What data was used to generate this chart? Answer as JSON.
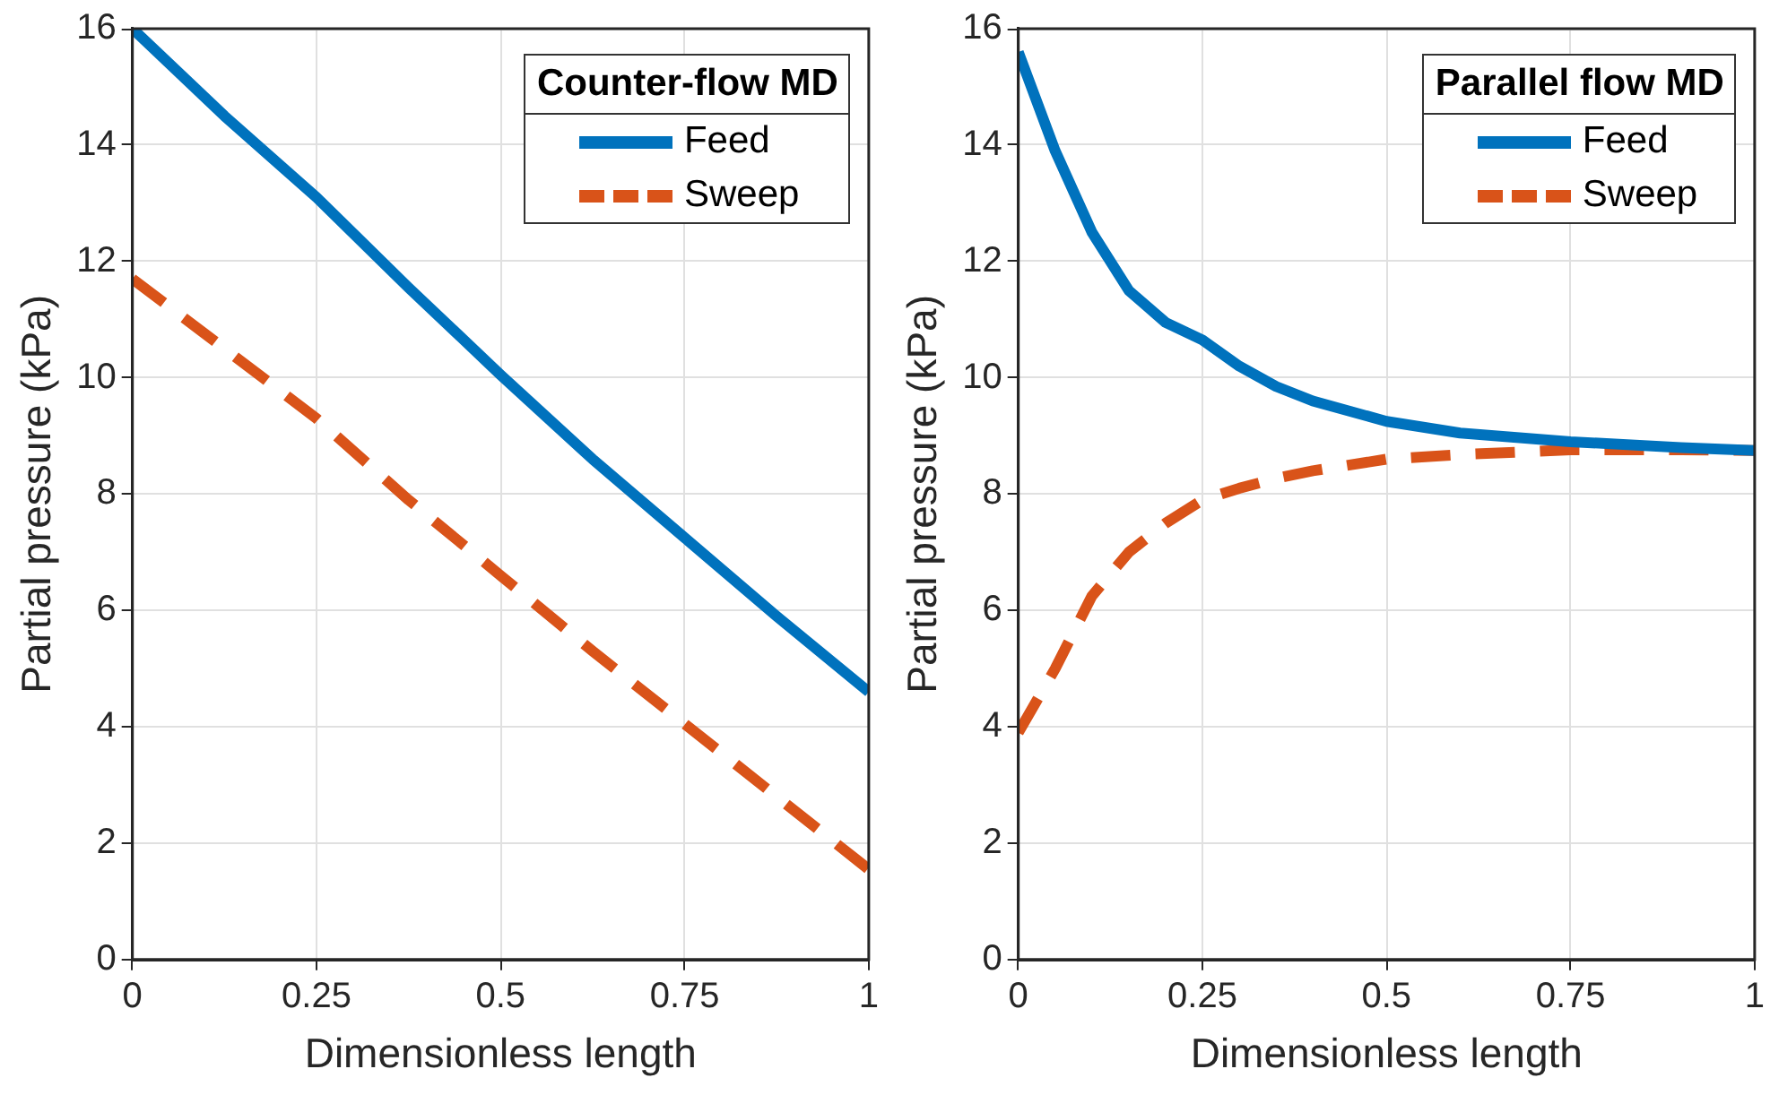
{
  "chart_data": [
    {
      "type": "line",
      "xlabel": "Dimensionless length",
      "ylabel": "Partial pressure (kPa)",
      "legend_title": "Counter-flow MD",
      "legend": "top right",
      "grid": true,
      "marker": "none",
      "xlim": [
        0,
        1
      ],
      "xticks": [
        0,
        0.25,
        0.5,
        0.75,
        1
      ],
      "ylim": [
        0,
        16
      ],
      "yticks": [
        0,
        2,
        4,
        6,
        8,
        10,
        12,
        14,
        16
      ],
      "x": [
        0,
        0.125,
        0.25,
        0.375,
        0.5,
        0.625,
        0.75,
        0.875,
        1
      ],
      "series": [
        {
          "name": "Feed",
          "color": "#0072bd",
          "line_style": "solid",
          "values": [
            16.0,
            14.5,
            13.1,
            11.55,
            10.05,
            8.6,
            7.25,
            5.9,
            4.6
          ]
        },
        {
          "name": "Sweep",
          "color": "#d95319",
          "line_style": "dashed",
          "values": [
            11.7,
            10.5,
            9.3,
            7.9,
            6.6,
            5.3,
            4.05,
            2.8,
            1.55
          ]
        }
      ]
    },
    {
      "type": "line",
      "xlabel": "Dimensionless length",
      "ylabel": "Partial pressure (kPa)",
      "legend_title": "Parallel flow MD",
      "legend": "top right",
      "grid": true,
      "marker": "none",
      "xlim": [
        0,
        1
      ],
      "xticks": [
        0,
        0.25,
        0.5,
        0.75,
        1
      ],
      "ylim": [
        0,
        16
      ],
      "yticks": [
        0,
        2,
        4,
        6,
        8,
        10,
        12,
        14,
        16
      ],
      "x": [
        0,
        0.05,
        0.1,
        0.15,
        0.2,
        0.25,
        0.3,
        0.35,
        0.4,
        0.5,
        0.6,
        0.75,
        0.9,
        1
      ],
      "series": [
        {
          "name": "Feed",
          "color": "#0072bd",
          "line_style": "solid",
          "values": [
            15.6,
            13.9,
            12.5,
            11.5,
            10.95,
            10.65,
            10.2,
            9.85,
            9.6,
            9.25,
            9.05,
            8.9,
            8.8,
            8.75
          ]
        },
        {
          "name": "Sweep",
          "color": "#d95319",
          "line_style": "dashed",
          "values": [
            3.9,
            5.0,
            6.25,
            7.0,
            7.5,
            7.9,
            8.1,
            8.27,
            8.4,
            8.6,
            8.68,
            8.76,
            8.76,
            8.75
          ]
        }
      ]
    }
  ]
}
